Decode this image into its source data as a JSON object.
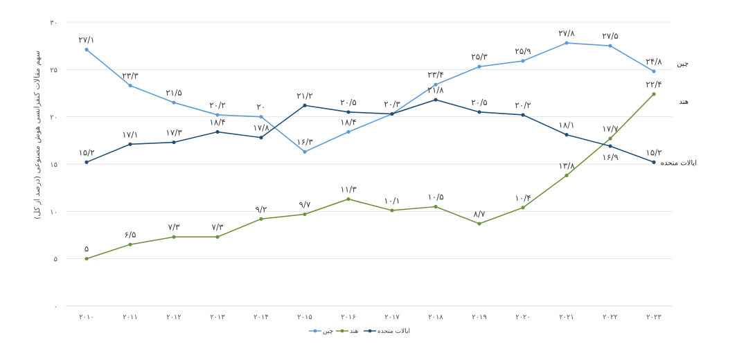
{
  "chart_data": {
    "type": "line",
    "title": "",
    "xlabel": "",
    "ylabel": "سهم مقالات کنفرانسی هوش مصنوعی (درصد از کل)",
    "ylim": [
      0,
      30
    ],
    "yticks": [
      0,
      5,
      10,
      15,
      20,
      25,
      30
    ],
    "ytick_labels": [
      "۰",
      "۵",
      "۱۰",
      "۱۵",
      "۲۰",
      "۲۵",
      "۳۰"
    ],
    "grid": true,
    "legend_position": "bottom",
    "x": [
      2010,
      2011,
      2012,
      2013,
      2014,
      2015,
      2016,
      2017,
      2018,
      2019,
      2020,
      2021,
      2022,
      2023
    ],
    "x_labels": [
      "۲۰۱۰",
      "۲۰۱۱",
      "۲۰۱۲",
      "۲۰۱۳",
      "۲۰۱۴",
      "۲۰۱۵",
      "۲۰۱۶",
      "۲۰۱۷",
      "۲۰۱۸",
      "۲۰۱۹",
      "۲۰۲۰",
      "۲۰۲۱",
      "۲۰۲۲",
      "۲۰۲۳"
    ],
    "series": [
      {
        "name": "چین",
        "color": "#5b9bd5",
        "values": [
          27.1,
          23.3,
          21.5,
          20.2,
          20.0,
          16.3,
          18.4,
          20.3,
          23.4,
          25.3,
          25.9,
          27.8,
          27.5,
          24.8
        ],
        "labels": [
          "۲۷/۱",
          "۲۳/۳",
          "۲۱/۵",
          "۲۰/۲",
          "۲۰",
          "۱۶/۳",
          "۱۸/۴",
          "",
          "۲۳/۴",
          "۲۵/۳",
          "۲۵/۹",
          "۲۷/۸",
          "۲۷/۵",
          "۲۴/۸"
        ],
        "label_pos": [
          "above",
          "above",
          "above",
          "above",
          "above",
          "above",
          "above",
          "above",
          "above",
          "above",
          "above",
          "above",
          "above",
          "above"
        ]
      },
      {
        "name": "هند",
        "color": "#70913f",
        "values": [
          5.0,
          6.5,
          7.3,
          7.3,
          9.2,
          9.7,
          11.3,
          10.1,
          10.5,
          8.7,
          10.4,
          13.8,
          17.7,
          22.4
        ],
        "labels": [
          "۵",
          "۶/۵",
          "۷/۳",
          "۷/۳",
          "۹/۲",
          "۹/۷",
          "۱۱/۳",
          "۱۰/۱",
          "۱۰/۵",
          "۸/۷",
          "۱۰/۴",
          "۱۳/۸",
          "۱۷/۷",
          "۲۲/۴"
        ],
        "label_pos": [
          "above",
          "above",
          "above",
          "above",
          "above",
          "above",
          "above",
          "above",
          "above",
          "above",
          "above",
          "above",
          "above",
          "above"
        ]
      },
      {
        "name": "ایالات متحده",
        "color": "#1f4e79",
        "values": [
          15.2,
          17.1,
          17.3,
          18.4,
          17.8,
          21.2,
          20.5,
          20.3,
          21.8,
          20.5,
          20.2,
          18.1,
          16.9,
          15.2
        ],
        "labels": [
          "۱۵/۲",
          "۱۷/۱",
          "۱۷/۳",
          "۱۸/۴",
          "۱۷/۸",
          "۲۱/۲",
          "۲۰/۵",
          "۲۰/۳",
          "۲۱/۸",
          "۲۰/۵",
          "۲۰/۲",
          "۱۸/۱",
          "۱۶/۹",
          "۱۵/۲"
        ],
        "label_pos": [
          "above",
          "above",
          "above",
          "above",
          "above",
          "above",
          "above",
          "above",
          "above",
          "above",
          "above",
          "above",
          "below",
          "above"
        ]
      }
    ]
  }
}
